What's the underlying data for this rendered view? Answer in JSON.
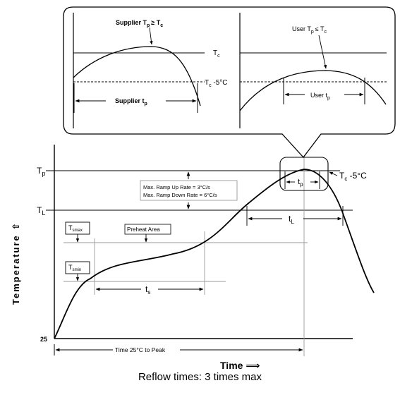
{
  "colors": {
    "line": "#000000",
    "guide": "#9a9a9a",
    "background": "#ffffff"
  },
  "callout": {
    "supplier_label_main": "Supplier T",
    "supplier_label_sub": "p",
    "supplier_label_rel": "≥ T",
    "supplier_label_rel_sub": "c",
    "user_label_main": "User T",
    "user_label_sub": "p",
    "user_label_rel": "≤ T",
    "user_label_rel_sub": "c",
    "tc_label_main": "T",
    "tc_label_sub": "c",
    "tc5_label_main": "T",
    "tc5_label_sub": "c",
    "tc5_label_suffix": " -5°C",
    "supplier_tp_main": "Supplier t",
    "supplier_tp_sub": "p",
    "user_tp_main": "User t",
    "user_tp_sub": "p"
  },
  "main": {
    "axis_y_title": "Temperature ⇧",
    "axis_x_title": "Time ⟹",
    "tp_label_main": "T",
    "tp_label_sub": "p",
    "tl_label_main": "T",
    "tl_label_sub": "L",
    "tick_25": "25",
    "ramp_up": "Max. Ramp Up Rate = 3°C/s",
    "ramp_down": "Max. Ramp Down Rate = 6°C/s",
    "tsmax_main": "T",
    "tsmax_sub": "smax",
    "tsmin_main": "T",
    "tsmin_sub": "smin",
    "preheat": "Preheat Area",
    "ts_main": "t",
    "ts_sub": "s",
    "tl_main": "t",
    "tl_sub": "L",
    "tp_main": "t",
    "tp_sub": "p",
    "tc5_right_main": "T",
    "tc5_right_sub": "c",
    "tc5_right_suffix": " -5°C",
    "time_to_peak": "Time 25°C to Peak"
  },
  "caption": "Reflow times: 3 times max"
}
